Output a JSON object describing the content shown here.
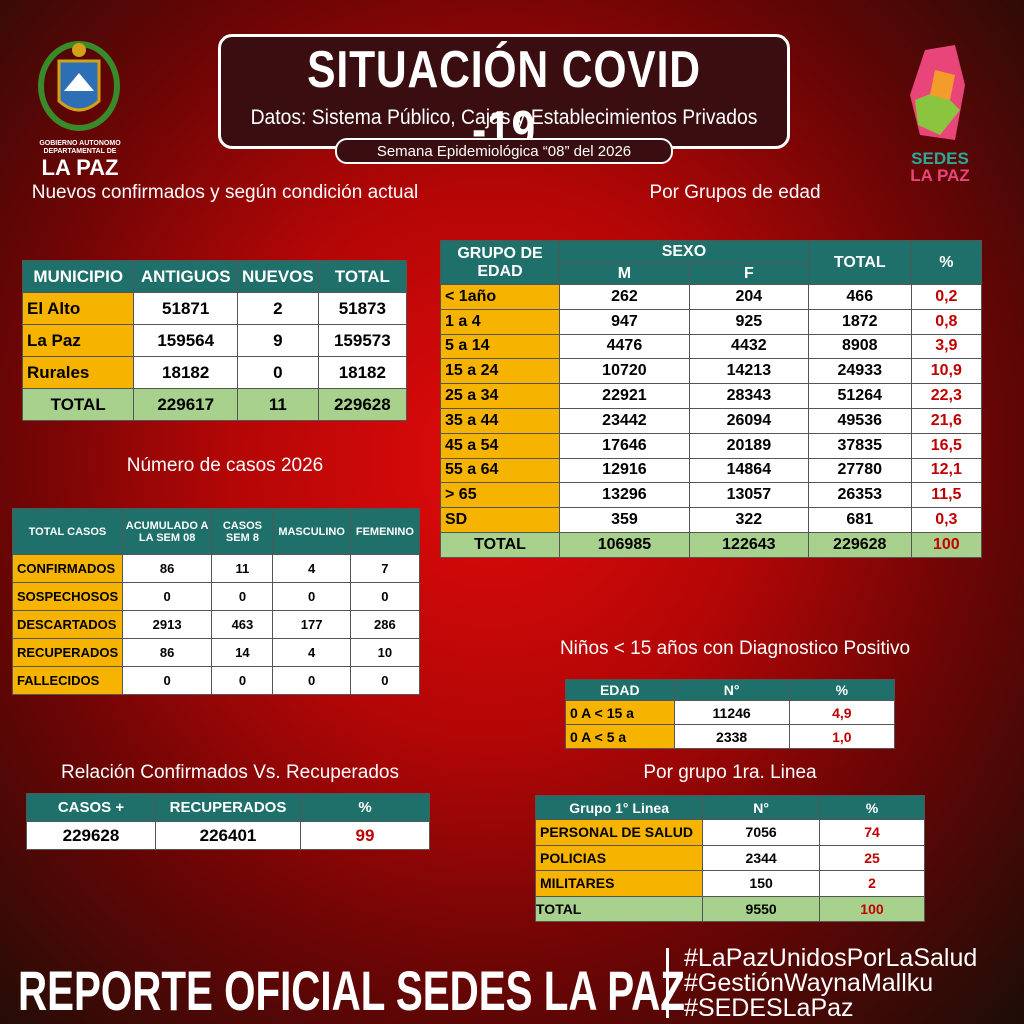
{
  "header": {
    "title": "SITUACIÓN COVID -19",
    "subtitle": "Datos: Sistema Público, Cajas y Establecimientos Privados",
    "week": "Semana  Epidemiológica “08” del  2026"
  },
  "logo_left": {
    "line1": "GOBIERNO AUTONOMO",
    "line2": "DEPARTAMENTAL DE",
    "line3": "LA PAZ"
  },
  "logo_right": {
    "line1": "SEDES",
    "line2": "LA PAZ"
  },
  "municipios": {
    "title": "Nuevos confirmados y según condición actual",
    "columns": [
      "MUNICIPIO",
      "ANTIGUOS",
      "NUEVOS",
      "TOTAL"
    ],
    "rows": [
      [
        "El Alto",
        51871,
        2,
        51873
      ],
      [
        "La Paz",
        159564,
        9,
        159573
      ],
      [
        "Rurales",
        18182,
        0,
        18182
      ],
      [
        "TOTAL",
        229617,
        11,
        229628
      ]
    ]
  },
  "edad": {
    "title": "Por Grupos de  edad",
    "header": {
      "group": "GRUPO DE EDAD",
      "sex": "SEXO",
      "m": "M",
      "f": "F",
      "total": "TOTAL",
      "pct": "%"
    },
    "rows": [
      [
        "< 1año",
        262,
        204,
        466,
        "0,2"
      ],
      [
        "1 a 4",
        947,
        925,
        1872,
        "0,8"
      ],
      [
        "5 a 14",
        4476,
        4432,
        8908,
        "3,9"
      ],
      [
        "15 a 24",
        10720,
        14213,
        24933,
        "10,9"
      ],
      [
        "25 a 34",
        22921,
        28343,
        51264,
        "22,3"
      ],
      [
        "35 a 44",
        23442,
        26094,
        49536,
        "21,6"
      ],
      [
        "45 a 54",
        17646,
        20189,
        37835,
        "16,5"
      ],
      [
        "55 a 64",
        12916,
        14864,
        27780,
        "12,1"
      ],
      [
        "> 65",
        13296,
        13057,
        26353,
        "11,5"
      ],
      [
        "SD",
        359,
        322,
        681,
        "0,3"
      ],
      [
        "TOTAL",
        106985,
        122643,
        229628,
        100
      ]
    ]
  },
  "casos": {
    "title": "Número de casos 2026",
    "columns": [
      "TOTAL CASOS",
      "ACUMULADO A LA  SEM 08",
      "CASOS SEM 8",
      "MASCULINO",
      "FEMENINO"
    ],
    "rows": [
      [
        "CONFIRMADOS",
        86,
        11,
        4,
        7
      ],
      [
        "SOSPECHOSOS",
        0,
        0,
        0,
        0
      ],
      [
        "DESCARTADOS",
        2913,
        463,
        177,
        286
      ],
      [
        "RECUPERADOS",
        86,
        14,
        4,
        10
      ],
      [
        "FALLECIDOS",
        0,
        0,
        0,
        0
      ]
    ]
  },
  "ninos": {
    "title": "Niños < 15 años con Diagnostico Positivo",
    "columns": [
      "EDAD",
      "N°",
      "%"
    ],
    "rows": [
      [
        "0 A < 15 a",
        11246,
        "4,9"
      ],
      [
        "0 A < 5 a",
        2338,
        "1,0"
      ]
    ]
  },
  "relacion": {
    "title": "Relación Confirmados Vs. Recuperados",
    "columns": [
      "CASOS +",
      "RECUPERADOS",
      "%"
    ],
    "rows": [
      [
        229628,
        226401,
        99
      ]
    ]
  },
  "primera_linea": {
    "title": "Por grupo 1ra. Linea",
    "columns": [
      "Grupo 1° Linea",
      "N°",
      "%"
    ],
    "rows": [
      [
        "PERSONAL DE SALUD",
        7056,
        74
      ],
      [
        "POLICIAS",
        2344,
        25
      ],
      [
        "MILITARES",
        150,
        2
      ],
      [
        "TOTAL",
        9550,
        100
      ]
    ]
  },
  "footer": {
    "title": "REPORTE OFICIAL SEDES LA PAZ",
    "hashtags": [
      "#LaPazUnidosPorLaSalud",
      "#GestiónWaynaMallku",
      "#SEDESLaPaz"
    ]
  }
}
